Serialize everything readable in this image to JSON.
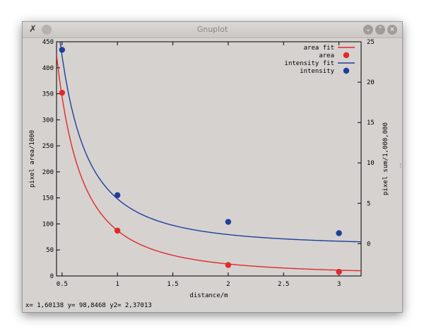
{
  "window": {
    "title": "Gnuplot",
    "app_icon": "gnuplot-x-icon",
    "controls": [
      "minimize-icon",
      "maximize-icon",
      "close-icon"
    ]
  },
  "status_bar": {
    "text": "x= 1,60138 y= 98,8468 y2= 2,37013"
  },
  "colors": {
    "area": "#e02a2a",
    "intensity": "#1f3f9a",
    "axis": "#000000",
    "background": "#d6d2d0"
  },
  "chart_data": {
    "type": "scatter",
    "xlabel": "distance/m",
    "ylabel": "pixel area/1000",
    "y2label": "pixel sum/1,000,000",
    "xlim": [
      0.45,
      3.2
    ],
    "ylim": [
      0,
      450
    ],
    "y2lim": [
      -4,
      25
    ],
    "x_ticks": [
      "0.5",
      "1",
      "1.5",
      "2",
      "2.5",
      "3"
    ],
    "y_ticks": [
      "0",
      "50",
      "100",
      "150",
      "200",
      "250",
      "300",
      "350",
      "400",
      "450"
    ],
    "y2_ticks": [
      "0",
      "5",
      "10",
      "15",
      "20",
      "25"
    ],
    "series": [
      {
        "name": "area fit",
        "kind": "line",
        "axis": "y",
        "model": "a/x^2+c",
        "a": 85.7,
        "c": 1.6
      },
      {
        "name": "area",
        "kind": "points",
        "axis": "y",
        "x": [
          0.5,
          1,
          2,
          3
        ],
        "values": [
          352,
          87,
          21,
          8
        ]
      },
      {
        "name": "intensity fit",
        "kind": "line",
        "axis": "y2",
        "model": "a/x^2+c",
        "a": 5.9,
        "c": -0.35
      },
      {
        "name": "intensity",
        "kind": "points",
        "axis": "y2",
        "x": [
          0.5,
          1,
          2,
          3
        ],
        "values": [
          24,
          6,
          2.7,
          1.3
        ]
      }
    ],
    "legend": {
      "placement": "top-right",
      "entries": [
        "area fit",
        "area",
        "intensity fit",
        "intensity"
      ]
    }
  }
}
